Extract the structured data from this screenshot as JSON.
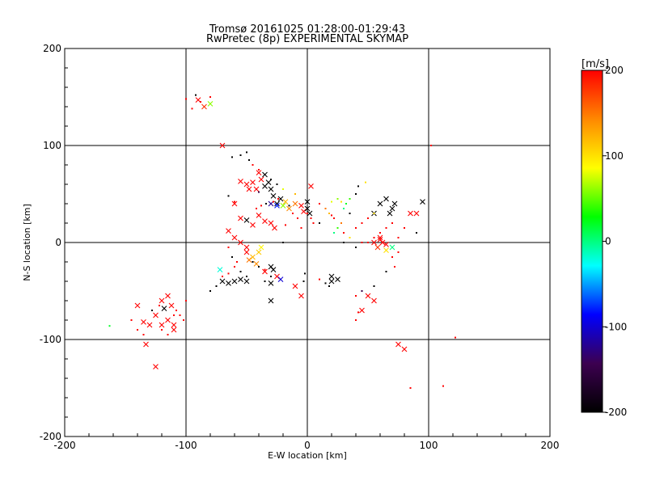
{
  "chart_data": {
    "type": "scatter",
    "title_line1": "Tromsø 20161025 01:28:00-01:29:43",
    "title_line2": "RwPretec (8p) EXPERIMENTAL SKYMAP",
    "xlabel": "E-W location [km]",
    "ylabel": "N-S location [km]",
    "xlim": [
      -200,
      200
    ],
    "ylim": [
      -200,
      200
    ],
    "x_ticks": [
      "-200",
      "-100",
      "0",
      "100",
      "200"
    ],
    "y_ticks": [
      "-200",
      "-100",
      "0",
      "100",
      "200"
    ],
    "grid": true,
    "colorbar": {
      "unit": "[m/s]",
      "range": [
        -200,
        200
      ],
      "ticks": [
        "-200",
        "-100",
        "0",
        "100",
        "200"
      ],
      "colors": [
        "#000000",
        "#3c0050",
        "#0000ff",
        "#00ffff",
        "#00ff00",
        "#ffff00",
        "#ff8800",
        "#ff0000"
      ]
    },
    "series": [
      {
        "marker": "x",
        "points": [
          [
            -90,
            147,
            200
          ],
          [
            -85,
            140,
            180
          ],
          [
            -80,
            143,
            60
          ],
          [
            -70,
            100,
            200
          ],
          [
            -55,
            63,
            200
          ],
          [
            -50,
            60,
            200
          ],
          [
            -45,
            62,
            200
          ],
          [
            -42,
            55,
            200
          ],
          [
            -48,
            55,
            200
          ],
          [
            -40,
            72,
            200
          ],
          [
            -38,
            65,
            200
          ],
          [
            -35,
            70,
            -200
          ],
          [
            -35,
            58,
            -200
          ],
          [
            -30,
            55,
            -200
          ],
          [
            -32,
            62,
            -200
          ],
          [
            -28,
            48,
            -200
          ],
          [
            -25,
            40,
            -200
          ],
          [
            -22,
            45,
            -200
          ],
          [
            -30,
            40,
            -120
          ],
          [
            -25,
            38,
            -80
          ],
          [
            -20,
            38,
            60
          ],
          [
            -18,
            42,
            120
          ],
          [
            -15,
            35,
            140
          ],
          [
            -10,
            40,
            150
          ],
          [
            -5,
            38,
            200
          ],
          [
            -3,
            32,
            200
          ],
          [
            0,
            35,
            -200
          ],
          [
            2,
            30,
            -200
          ],
          [
            0,
            42,
            -200
          ],
          [
            3,
            58,
            200
          ],
          [
            -60,
            40,
            200
          ],
          [
            -55,
            25,
            200
          ],
          [
            -50,
            23,
            -200
          ],
          [
            -45,
            18,
            200
          ],
          [
            -40,
            28,
            200
          ],
          [
            -35,
            22,
            200
          ],
          [
            -30,
            20,
            200
          ],
          [
            -27,
            15,
            200
          ],
          [
            -65,
            12,
            200
          ],
          [
            -60,
            5,
            200
          ],
          [
            -55,
            0,
            200
          ],
          [
            -50,
            -5,
            200
          ],
          [
            -50,
            -10,
            200
          ],
          [
            -48,
            -18,
            150
          ],
          [
            -45,
            -15,
            120
          ],
          [
            -40,
            -10,
            110
          ],
          [
            -38,
            -5,
            90
          ],
          [
            -42,
            -22,
            140
          ],
          [
            -35,
            -30,
            200
          ],
          [
            -30,
            -25,
            -200
          ],
          [
            -28,
            -28,
            -200
          ],
          [
            -25,
            -35,
            200
          ],
          [
            -22,
            -38,
            -100
          ],
          [
            -30,
            -42,
            -200
          ],
          [
            -30,
            -60,
            -200
          ],
          [
            -10,
            -45,
            200
          ],
          [
            -5,
            -55,
            200
          ],
          [
            -70,
            -40,
            -200
          ],
          [
            -65,
            -42,
            -200
          ],
          [
            -60,
            -40,
            -200
          ],
          [
            -55,
            -38,
            -200
          ],
          [
            -50,
            -40,
            -200
          ],
          [
            -72,
            -28,
            -20
          ],
          [
            20,
            -35,
            -200
          ],
          [
            20,
            -40,
            -200
          ],
          [
            25,
            -38,
            -200
          ],
          [
            60,
            5,
            200
          ],
          [
            62,
            0,
            200
          ],
          [
            65,
            -2,
            200
          ],
          [
            60,
            3,
            200
          ],
          [
            55,
            0,
            200
          ],
          [
            58,
            -5,
            180
          ],
          [
            70,
            -5,
            0
          ],
          [
            65,
            -8,
            100
          ],
          [
            68,
            30,
            -200
          ],
          [
            70,
            35,
            -200
          ],
          [
            72,
            40,
            -200
          ],
          [
            60,
            40,
            -200
          ],
          [
            55,
            30,
            -200
          ],
          [
            65,
            45,
            -200
          ],
          [
            95,
            42,
            -200
          ],
          [
            90,
            30,
            200
          ],
          [
            85,
            30,
            200
          ],
          [
            50,
            -55,
            200
          ],
          [
            45,
            -70,
            200
          ],
          [
            55,
            -60,
            200
          ],
          [
            75,
            -105,
            200
          ],
          [
            80,
            -110,
            200
          ],
          [
            -140,
            -65,
            200
          ],
          [
            -135,
            -82,
            200
          ],
          [
            -130,
            -85,
            200
          ],
          [
            -125,
            -75,
            200
          ],
          [
            -120,
            -85,
            200
          ],
          [
            -110,
            -90,
            200
          ],
          [
            -115,
            -80,
            200
          ],
          [
            -110,
            -85,
            200
          ],
          [
            -120,
            -60,
            200
          ],
          [
            -115,
            -55,
            200
          ],
          [
            -125,
            -128,
            200
          ],
          [
            -133,
            -105,
            200
          ],
          [
            -118,
            -68,
            -200
          ],
          [
            -112,
            -65,
            200
          ]
        ]
      },
      {
        "marker": "dot",
        "points": [
          [
            -100,
            148,
            200
          ],
          [
            -95,
            138,
            200
          ],
          [
            -88,
            145,
            200
          ],
          [
            -80,
            150,
            200
          ],
          [
            -92,
            152,
            -200
          ],
          [
            -62,
            88,
            -200
          ],
          [
            -55,
            90,
            -200
          ],
          [
            -50,
            93,
            -200
          ],
          [
            -48,
            85,
            -200
          ],
          [
            -45,
            80,
            200
          ],
          [
            -40,
            75,
            200
          ],
          [
            -35,
            70,
            -200
          ],
          [
            -30,
            65,
            -200
          ],
          [
            -25,
            60,
            -200
          ],
          [
            -65,
            48,
            -200
          ],
          [
            -60,
            42,
            200
          ],
          [
            -40,
            52,
            -150
          ],
          [
            -20,
            55,
            80
          ],
          [
            -10,
            50,
            120
          ],
          [
            10,
            40,
            200
          ],
          [
            15,
            35,
            150
          ],
          [
            18,
            30,
            120
          ],
          [
            20,
            42,
            80
          ],
          [
            25,
            45,
            60
          ],
          [
            28,
            42,
            100
          ],
          [
            30,
            35,
            0
          ],
          [
            32,
            40,
            20
          ],
          [
            35,
            45,
            40
          ],
          [
            40,
            50,
            -200
          ],
          [
            35,
            30,
            -200
          ],
          [
            20,
            28,
            200
          ],
          [
            22,
            25,
            200
          ],
          [
            28,
            20,
            150
          ],
          [
            25,
            15,
            40
          ],
          [
            22,
            10,
            0
          ],
          [
            30,
            10,
            200
          ],
          [
            40,
            15,
            200
          ],
          [
            45,
            20,
            200
          ],
          [
            50,
            25,
            200
          ],
          [
            55,
            30,
            100
          ],
          [
            48,
            62,
            100
          ],
          [
            42,
            58,
            -200
          ],
          [
            30,
            0,
            -200
          ],
          [
            35,
            5,
            100
          ],
          [
            40,
            -5,
            -200
          ],
          [
            45,
            0,
            200
          ],
          [
            50,
            0,
            200
          ],
          [
            55,
            5,
            200
          ],
          [
            60,
            10,
            200
          ],
          [
            65,
            15,
            200
          ],
          [
            70,
            20,
            200
          ],
          [
            75,
            5,
            200
          ],
          [
            80,
            15,
            200
          ],
          [
            90,
            10,
            -200
          ],
          [
            75,
            -10,
            200
          ],
          [
            70,
            -15,
            200
          ],
          [
            72,
            -25,
            200
          ],
          [
            65,
            -30,
            -200
          ],
          [
            55,
            -45,
            -200
          ],
          [
            45,
            -50,
            -150
          ],
          [
            40,
            -55,
            200
          ],
          [
            42,
            -72,
            200
          ],
          [
            40,
            -80,
            200
          ],
          [
            85,
            -150,
            200
          ],
          [
            112,
            -148,
            200
          ],
          [
            122,
            -98,
            200
          ],
          [
            102,
            100,
            200
          ],
          [
            -3,
            -40,
            -200
          ],
          [
            -2,
            -32,
            -200
          ],
          [
            10,
            -38,
            200
          ],
          [
            15,
            -42,
            -200
          ],
          [
            18,
            -45,
            -200
          ],
          [
            -45,
            -20,
            -200
          ],
          [
            -40,
            -25,
            -200
          ],
          [
            -35,
            -28,
            200
          ],
          [
            -30,
            -35,
            -200
          ],
          [
            -35,
            -40,
            -200
          ],
          [
            -50,
            -35,
            -200
          ],
          [
            -55,
            -30,
            -200
          ],
          [
            -60,
            -25,
            200
          ],
          [
            -65,
            -32,
            200
          ],
          [
            -70,
            -35,
            200
          ],
          [
            -75,
            -45,
            -200
          ],
          [
            -80,
            -50,
            -200
          ],
          [
            -62,
            -15,
            -200
          ],
          [
            -58,
            -20,
            200
          ],
          [
            -65,
            -5,
            200
          ],
          [
            -42,
            35,
            200
          ],
          [
            -38,
            38,
            200
          ],
          [
            -34,
            40,
            -200
          ],
          [
            -28,
            42,
            200
          ],
          [
            -24,
            45,
            200
          ],
          [
            -15,
            38,
            -200
          ],
          [
            -12,
            30,
            200
          ],
          [
            -8,
            25,
            200
          ],
          [
            0,
            30,
            200
          ],
          [
            3,
            25,
            200
          ],
          [
            5,
            20,
            200
          ],
          [
            -145,
            -80,
            200
          ],
          [
            -140,
            -90,
            200
          ],
          [
            -135,
            -95,
            200
          ],
          [
            -128,
            -70,
            -200
          ],
          [
            -122,
            -65,
            200
          ],
          [
            -108,
            -70,
            200
          ],
          [
            -105,
            -75,
            200
          ],
          [
            -102,
            -80,
            200
          ],
          [
            -110,
            -75,
            200
          ],
          [
            -115,
            -95,
            200
          ],
          [
            -163,
            -86,
            20
          ],
          [
            -120,
            -90,
            200
          ],
          [
            -100,
            -60,
            200
          ],
          [
            -5,
            15,
            200
          ],
          [
            10,
            20,
            -200
          ],
          [
            -18,
            18,
            200
          ],
          [
            -20,
            0,
            -200
          ]
        ]
      }
    ]
  }
}
